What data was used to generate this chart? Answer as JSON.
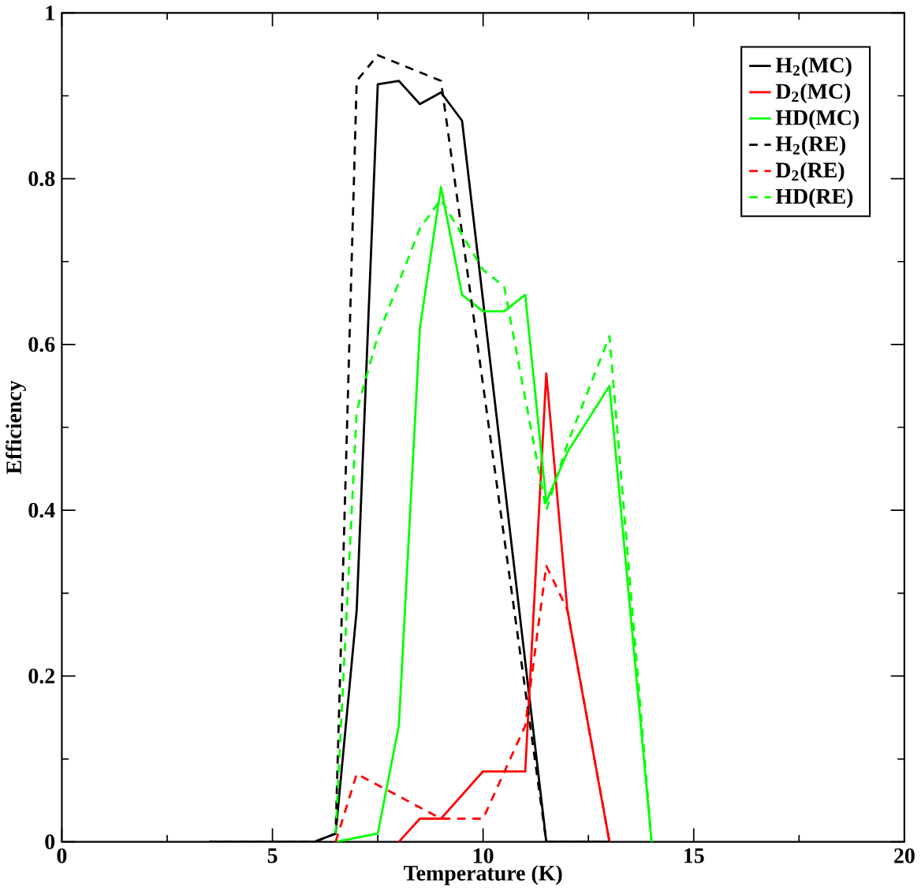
{
  "chart_data": {
    "type": "line",
    "xlabel": "Temperature (K)",
    "ylabel": "Efficiency",
    "xlim": [
      0,
      20
    ],
    "ylim": [
      0,
      1
    ],
    "xticks": [
      0,
      5,
      10,
      15,
      20
    ],
    "yticks": [
      0,
      0.2,
      0.4,
      0.6,
      0.8,
      1
    ],
    "legend": "top right",
    "grid": false,
    "series": [
      {
        "name": "H$_{2}$(MC)",
        "color": "#000000",
        "line_style": "solid",
        "x": [
          3.5,
          6,
          6.5,
          7,
          7.5,
          8,
          8.5,
          9,
          9.5,
          11.5,
          13
        ],
        "values": [
          0,
          0,
          0.01,
          0.28,
          0.914,
          0.918,
          0.89,
          0.904,
          0.87,
          0,
          0
        ]
      },
      {
        "name": "D$_{2}$(MC)",
        "color": "#ff0000",
        "line_style": "solid",
        "x": [
          8,
          8.5,
          9,
          10,
          11,
          11.5,
          12,
          13
        ],
        "values": [
          0,
          0.028,
          0.028,
          0.085,
          0.085,
          0.565,
          0.28,
          0
        ]
      },
      {
        "name": "HD(MC)",
        "color": "#00ff00",
        "line_style": "solid",
        "x": [
          6.5,
          7.5,
          8,
          8.5,
          9,
          9.5,
          10,
          10.5,
          11,
          11.5,
          12,
          13,
          14
        ],
        "values": [
          0,
          0.01,
          0.14,
          0.62,
          0.79,
          0.66,
          0.64,
          0.64,
          0.66,
          0.41,
          0.47,
          0.55,
          0
        ]
      },
      {
        "name": "H$_{2}$(RE)",
        "color": "#000000",
        "line_style": "dashed",
        "x": [
          3.5,
          6,
          6.5,
          7,
          7.5,
          9,
          11.5,
          13
        ],
        "values": [
          0,
          0,
          0.01,
          0.918,
          0.949,
          0.918,
          0,
          0
        ]
      },
      {
        "name": "D$_{2}$(RE)",
        "color": "#ff0000",
        "line_style": "dashed",
        "x": [
          6.5,
          7,
          9,
          10,
          11,
          11.5,
          12,
          13
        ],
        "values": [
          0,
          0.082,
          0.028,
          0.028,
          0.14,
          0.333,
          0.28,
          0
        ]
      },
      {
        "name": "HD(RE)",
        "color": "#00ff00",
        "line_style": "dashed",
        "x": [
          6.5,
          7,
          7.5,
          8.5,
          9,
          10,
          10.5,
          11.5,
          12,
          13,
          14
        ],
        "values": [
          0.01,
          0.52,
          0.61,
          0.74,
          0.775,
          0.69,
          0.67,
          0.4,
          0.48,
          0.61,
          0
        ]
      }
    ]
  }
}
